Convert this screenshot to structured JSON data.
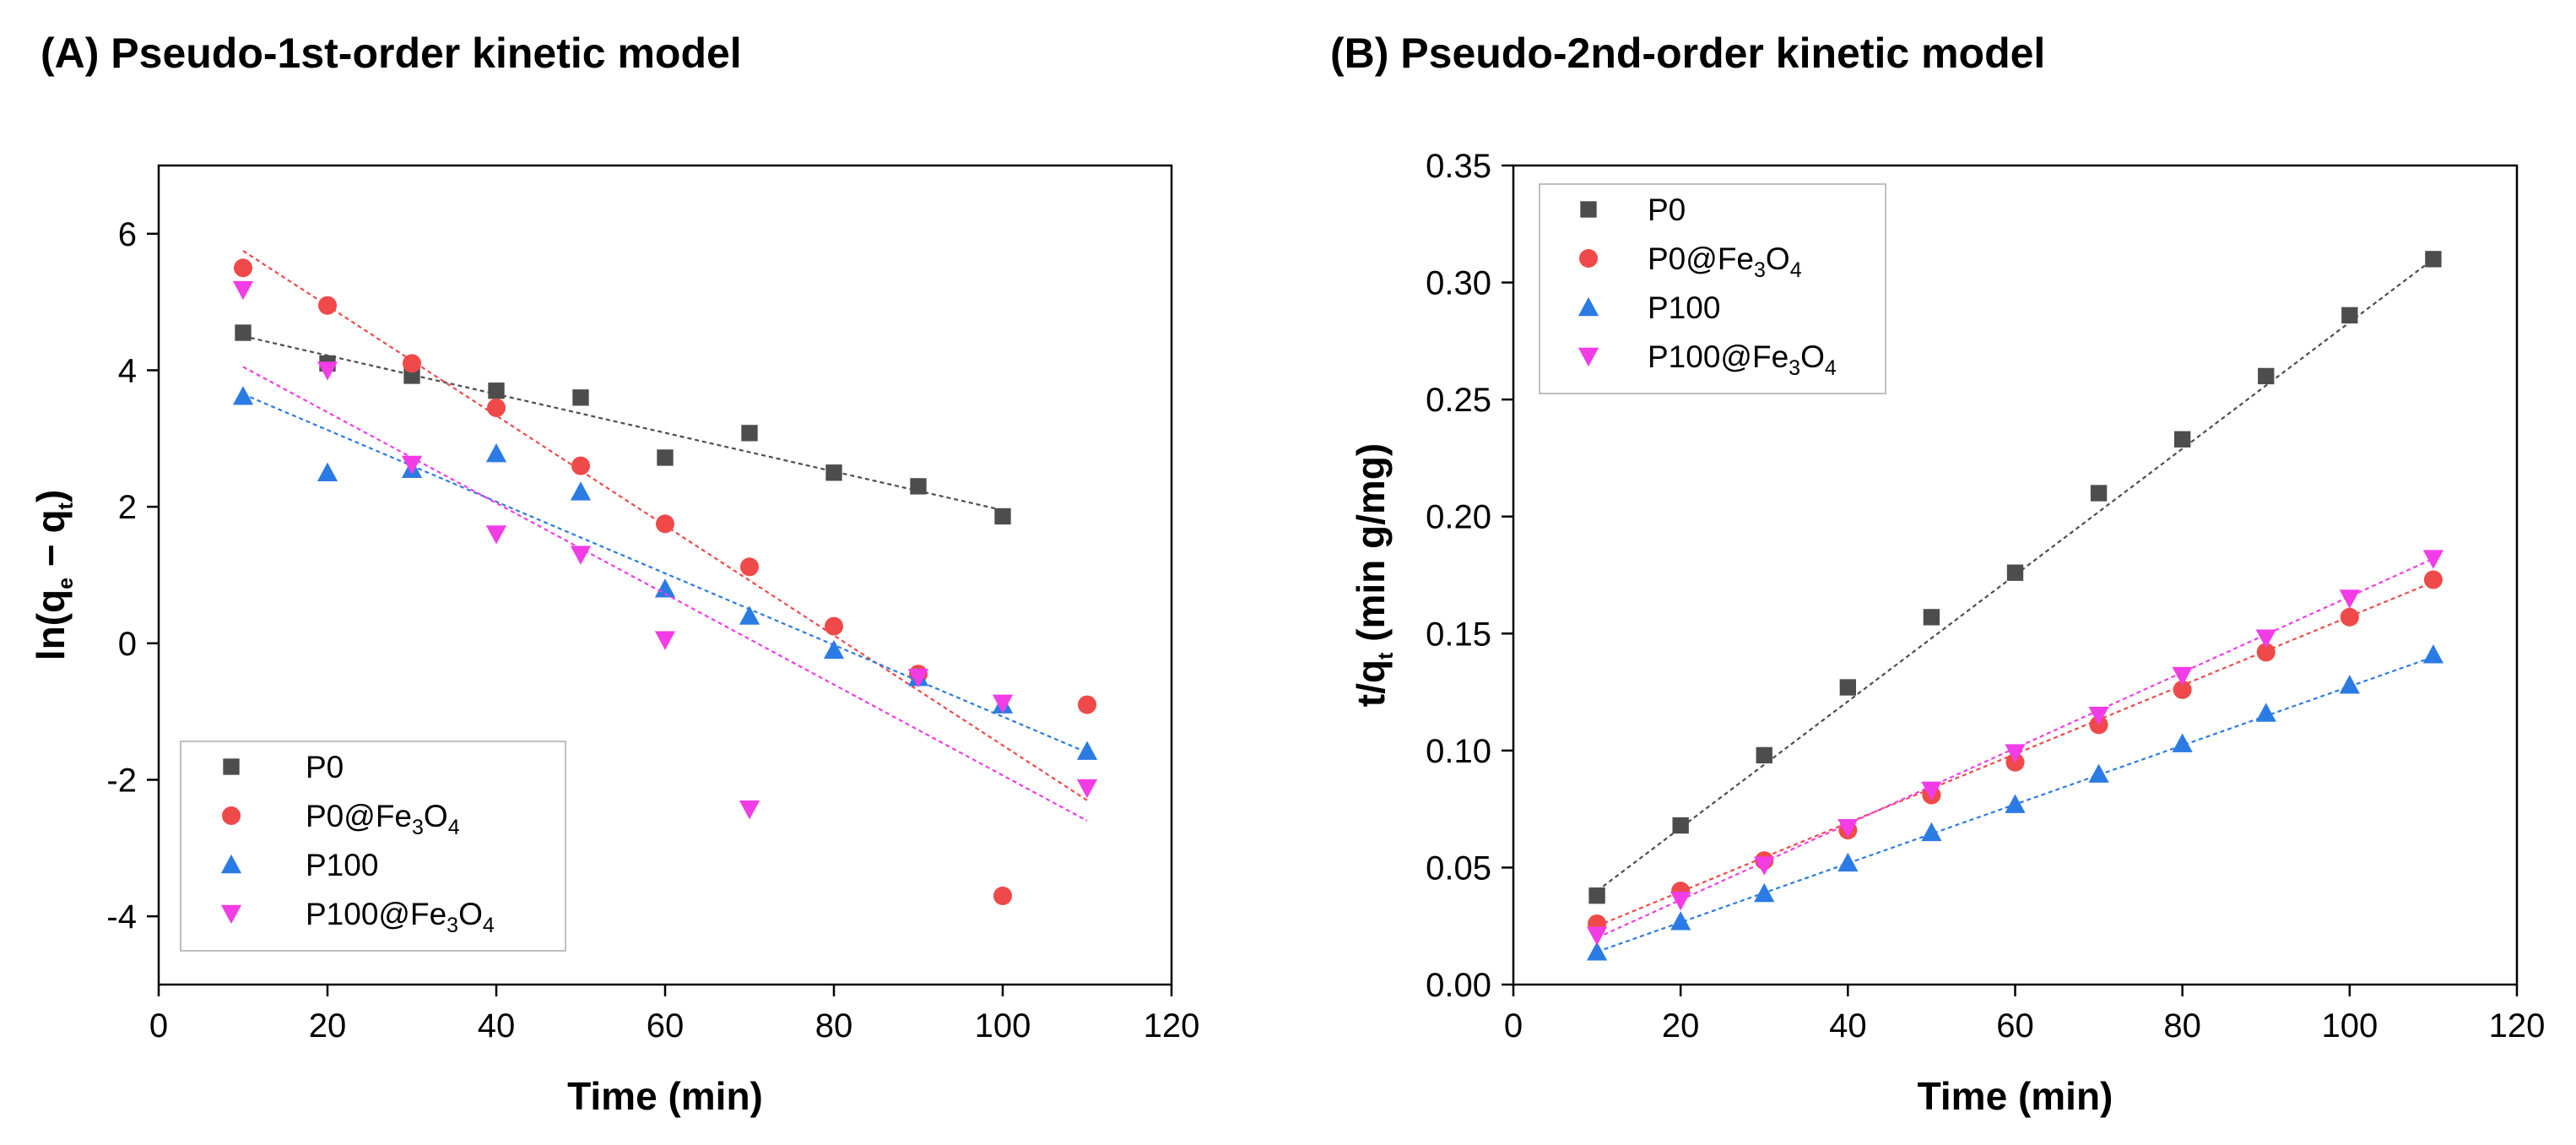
{
  "chart_data": [
    {
      "type": "scatter",
      "title": "(A) Pseudo-1st-order kinetic model",
      "xlabel": "Time (min)",
      "ylabel": {
        "main": "ln(q",
        "sub1": "e",
        "mid": " − q",
        "sub2": "t",
        "end": ")"
      },
      "xlim": [
        0,
        120
      ],
      "ylim": [
        -5,
        7
      ],
      "xticks": [
        0,
        20,
        40,
        60,
        80,
        100,
        120
      ],
      "yticks": [
        -4,
        -2,
        0,
        2,
        4,
        6
      ],
      "grid": false,
      "legend_position": "bottom-left",
      "series": [
        {
          "name": "P0",
          "name_parts": [
            "P0"
          ],
          "marker": "square",
          "color": "#4d4d4d",
          "x": [
            10,
            20,
            30,
            40,
            50,
            60,
            70,
            80,
            90,
            100
          ],
          "y": [
            4.55,
            4.1,
            3.92,
            3.7,
            3.6,
            2.72,
            3.08,
            2.5,
            2.3,
            1.86
          ],
          "fit": {
            "x": [
              10,
              100
            ],
            "y": [
              4.5,
              1.95
            ]
          }
        },
        {
          "name": "P0@Fe3O4",
          "name_parts": [
            "P0@Fe",
            "3",
            "O",
            "4",
            ""
          ],
          "marker": "circle",
          "color": "#f0494a",
          "x": [
            10,
            20,
            30,
            40,
            50,
            60,
            70,
            80,
            90,
            100,
            110
          ],
          "y": [
            5.5,
            4.95,
            4.1,
            3.45,
            2.6,
            1.75,
            1.12,
            0.25,
            -0.45,
            -3.7,
            -0.9
          ],
          "fit": {
            "x": [
              10,
              110
            ],
            "y": [
              5.75,
              -2.3
            ]
          }
        },
        {
          "name": "P100",
          "name_parts": [
            "P100"
          ],
          "marker": "triangle-up",
          "color": "#2b7be4",
          "x": [
            10,
            20,
            30,
            40,
            50,
            60,
            70,
            80,
            90,
            100,
            110
          ],
          "y": [
            3.62,
            2.5,
            2.55,
            2.78,
            2.22,
            0.8,
            0.4,
            -0.1,
            -0.5,
            -0.9,
            -1.58
          ],
          "fit": {
            "x": [
              10,
              110
            ],
            "y": [
              3.65,
              -1.6
            ]
          }
        },
        {
          "name": "P100@Fe3O4",
          "name_parts": [
            "P100@Fe",
            "3",
            "O",
            "4",
            ""
          ],
          "marker": "triangle-down",
          "color": "#f23ce6",
          "x": [
            10,
            20,
            30,
            40,
            50,
            60,
            70,
            90,
            100,
            110
          ],
          "y": [
            5.18,
            4.0,
            2.62,
            1.6,
            1.3,
            0.05,
            -2.43,
            -0.5,
            -0.88,
            -2.12
          ],
          "fit": {
            "x": [
              10,
              110
            ],
            "y": [
              4.05,
              -2.6
            ]
          }
        }
      ]
    },
    {
      "type": "scatter",
      "title": "(B) Pseudo-2nd-order kinetic model",
      "xlabel": "Time (min)",
      "ylabel": {
        "main": "t/q",
        "sub1": "t",
        "mid": " (min g/mg)",
        "sub2": "",
        "end": ""
      },
      "xlim": [
        0,
        120
      ],
      "ylim": [
        0,
        0.35
      ],
      "xticks": [
        0,
        20,
        40,
        60,
        80,
        100,
        120
      ],
      "yticks": [
        0.0,
        0.05,
        0.1,
        0.15,
        0.2,
        0.25,
        0.3,
        0.35
      ],
      "grid": false,
      "legend_position": "top-left",
      "series": [
        {
          "name": "P0",
          "name_parts": [
            "P0"
          ],
          "marker": "square",
          "color": "#4d4d4d",
          "x": [
            10,
            20,
            30,
            40,
            50,
            60,
            70,
            80,
            90,
            100,
            110
          ],
          "y": [
            0.038,
            0.068,
            0.098,
            0.127,
            0.157,
            0.176,
            0.21,
            0.233,
            0.26,
            0.286,
            0.31
          ],
          "fit": {
            "x": [
              10,
              110
            ],
            "y": [
              0.04,
              0.31
            ]
          }
        },
        {
          "name": "P0@Fe3O4",
          "name_parts": [
            "P0@Fe",
            "3",
            "O",
            "4",
            ""
          ],
          "marker": "circle",
          "color": "#f0494a",
          "x": [
            10,
            20,
            30,
            40,
            50,
            60,
            70,
            80,
            90,
            100,
            110
          ],
          "y": [
            0.026,
            0.04,
            0.053,
            0.066,
            0.081,
            0.095,
            0.111,
            0.126,
            0.142,
            0.157,
            0.173
          ],
          "fit": {
            "x": [
              10,
              110
            ],
            "y": [
              0.025,
              0.172
            ]
          }
        },
        {
          "name": "P100",
          "name_parts": [
            "P100"
          ],
          "marker": "triangle-up",
          "color": "#2b7be4",
          "x": [
            10,
            20,
            30,
            40,
            50,
            60,
            70,
            80,
            90,
            100,
            110
          ],
          "y": [
            0.014,
            0.027,
            0.039,
            0.052,
            0.065,
            0.077,
            0.09,
            0.103,
            0.116,
            0.128,
            0.141
          ],
          "fit": {
            "x": [
              10,
              110
            ],
            "y": [
              0.014,
              0.14
            ]
          }
        },
        {
          "name": "P100@Fe3O4",
          "name_parts": [
            "P100@Fe",
            "3",
            "O",
            "4",
            ""
          ],
          "marker": "triangle-down",
          "color": "#f23ce6",
          "x": [
            10,
            20,
            30,
            40,
            50,
            60,
            70,
            80,
            90,
            100,
            110
          ],
          "y": [
            0.021,
            0.036,
            0.051,
            0.067,
            0.083,
            0.099,
            0.115,
            0.132,
            0.148,
            0.165,
            0.182
          ],
          "fit": {
            "x": [
              10,
              110
            ],
            "y": [
              0.02,
              0.182
            ]
          }
        }
      ]
    }
  ]
}
